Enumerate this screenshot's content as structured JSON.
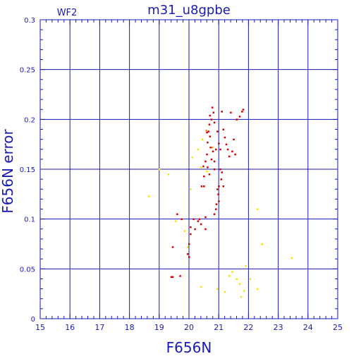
{
  "chart_data": {
    "type": "scatter",
    "title": "m31_u8gpbe",
    "subtitle": "WF2",
    "xlabel": "F656N",
    "ylabel": "F656N error",
    "xlim": [
      15,
      25
    ],
    "ylim": [
      0,
      0.3
    ],
    "x_ticks": [
      "15",
      "16",
      "17",
      "18",
      "19",
      "20",
      "21",
      "22",
      "23",
      "24",
      "25"
    ],
    "y_ticks": [
      "0",
      "0.05",
      "0.1",
      "0.15",
      "0.2",
      "0.25",
      "0.3"
    ],
    "grid": true,
    "colors": {
      "frame": "#1a1ab4",
      "grid": "#1a1ab4",
      "red": "#d40000",
      "yellow": "#f2e600",
      "orange": "#ff8c00"
    },
    "series": [
      {
        "color": "#d40000",
        "points": [
          [
            20.6,
            0.187
          ],
          [
            20.65,
            0.188
          ],
          [
            20.7,
            0.204
          ],
          [
            20.68,
            0.195
          ],
          [
            20.75,
            0.2
          ],
          [
            20.78,
            0.212
          ],
          [
            20.82,
            0.207
          ],
          [
            20.85,
            0.197
          ],
          [
            20.7,
            0.183
          ],
          [
            20.62,
            0.177
          ],
          [
            20.72,
            0.172
          ],
          [
            20.8,
            0.168
          ],
          [
            20.6,
            0.165
          ],
          [
            20.55,
            0.158
          ],
          [
            20.48,
            0.153
          ],
          [
            20.5,
            0.143
          ],
          [
            20.62,
            0.152
          ],
          [
            20.68,
            0.145
          ],
          [
            20.42,
            0.133
          ],
          [
            20.5,
            0.133
          ],
          [
            20.75,
            0.16
          ],
          [
            20.85,
            0.15
          ],
          [
            20.9,
            0.17
          ],
          [
            20.95,
            0.188
          ],
          [
            21.0,
            0.176
          ],
          [
            21.05,
            0.17
          ],
          [
            21.1,
            0.208
          ],
          [
            21.15,
            0.19
          ],
          [
            21.2,
            0.182
          ],
          [
            21.25,
            0.175
          ],
          [
            21.3,
            0.17
          ],
          [
            21.35,
            0.163
          ],
          [
            21.45,
            0.168
          ],
          [
            21.5,
            0.18
          ],
          [
            21.55,
            0.165
          ],
          [
            21.6,
            0.2
          ],
          [
            21.7,
            0.203
          ],
          [
            21.78,
            0.208
          ],
          [
            21.82,
            0.21
          ],
          [
            21.4,
            0.207
          ],
          [
            21.05,
            0.15
          ],
          [
            21.1,
            0.147
          ],
          [
            21.08,
            0.14
          ],
          [
            21.0,
            0.133
          ],
          [
            20.95,
            0.13
          ],
          [
            20.98,
            0.125
          ],
          [
            21.0,
            0.118
          ],
          [
            20.92,
            0.115
          ],
          [
            20.9,
            0.11
          ],
          [
            20.85,
            0.105
          ],
          [
            20.55,
            0.102
          ],
          [
            20.35,
            0.1
          ],
          [
            20.3,
            0.098
          ],
          [
            20.15,
            0.1
          ],
          [
            20.4,
            0.095
          ],
          [
            20.05,
            0.092
          ],
          [
            20.2,
            0.09
          ],
          [
            20.55,
            0.09
          ],
          [
            20.05,
            0.085
          ],
          [
            20.0,
            0.075
          ],
          [
            19.95,
            0.065
          ],
          [
            20.0,
            0.062
          ],
          [
            19.75,
            0.1
          ],
          [
            19.6,
            0.105
          ],
          [
            19.45,
            0.072
          ],
          [
            19.45,
            0.042
          ],
          [
            19.4,
            0.042
          ],
          [
            19.7,
            0.043
          ],
          [
            20.85,
            0.158
          ],
          [
            21.15,
            0.133
          ]
        ]
      },
      {
        "color": "#f2e600",
        "points": [
          [
            20.45,
            0.18
          ],
          [
            20.3,
            0.17
          ],
          [
            20.1,
            0.162
          ],
          [
            20.4,
            0.152
          ],
          [
            20.6,
            0.148
          ],
          [
            19.3,
            0.145
          ],
          [
            19.0,
            0.15
          ],
          [
            18.65,
            0.123
          ],
          [
            20.05,
            0.13
          ],
          [
            19.55,
            0.098
          ],
          [
            19.95,
            0.072
          ],
          [
            19.85,
            0.088
          ],
          [
            20.4,
            0.032
          ],
          [
            20.95,
            0.03
          ],
          [
            21.2,
            0.027
          ],
          [
            21.35,
            0.043
          ],
          [
            21.45,
            0.047
          ],
          [
            21.6,
            0.04
          ],
          [
            21.75,
            0.022
          ],
          [
            21.85,
            0.028
          ],
          [
            22.05,
            0.04
          ],
          [
            22.3,
            0.03
          ],
          [
            22.3,
            0.11
          ],
          [
            22.45,
            0.075
          ],
          [
            23.45,
            0.061
          ],
          [
            21.9,
            0.053
          ],
          [
            21.7,
            0.035
          ]
        ]
      },
      {
        "color": "#ff8c00",
        "points": [
          [
            20.58,
            0.189
          ],
          [
            20.78,
            0.172
          ]
        ]
      }
    ]
  }
}
